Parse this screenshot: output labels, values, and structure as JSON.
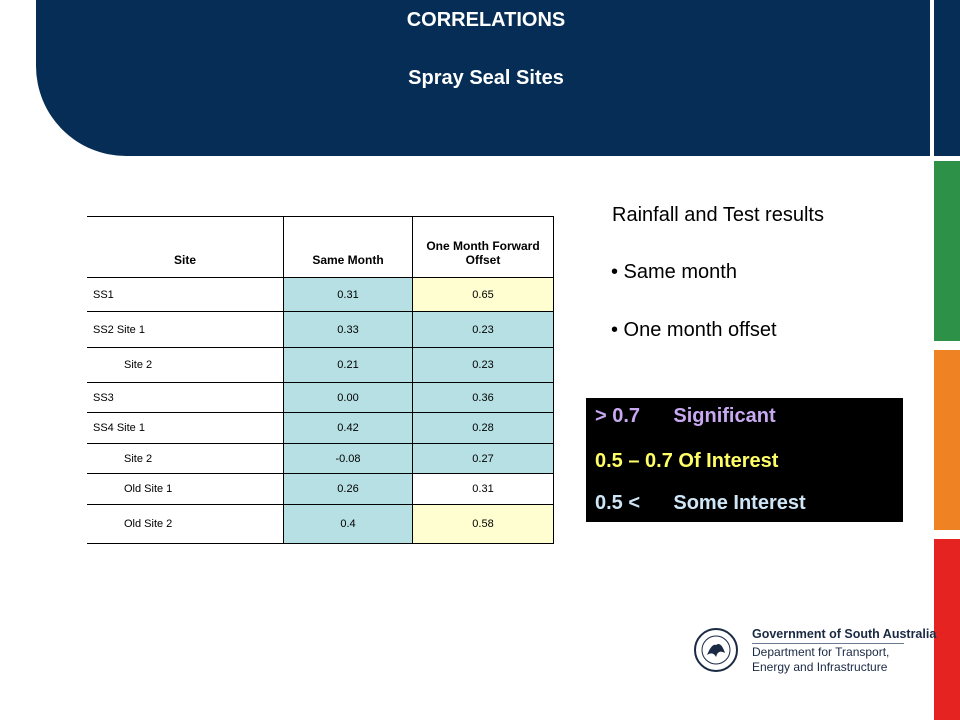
{
  "header": {
    "title": "CORRELATIONS",
    "subtitle": "Spray Seal Sites"
  },
  "table": {
    "columns": [
      "Site",
      "Same Month",
      "One Month Forward Offset"
    ],
    "rows": [
      {
        "site": "SS1",
        "same": "0.31",
        "offset": "0.65"
      },
      {
        "site": "SS2 Site 1",
        "same": "0.33",
        "offset": "0.23"
      },
      {
        "site": "Site 2",
        "same": "0.21",
        "offset": "0.23"
      },
      {
        "site": "SS3",
        "same": "0.00",
        "offset": "0.36"
      },
      {
        "site": "SS4 Site 1",
        "same": "0.42",
        "offset": "0.28"
      },
      {
        "site": "Site 2",
        "same": "-0.08",
        "offset": "0.27"
      },
      {
        "site": "Old Site 1",
        "same": "0.26",
        "offset": "0.31"
      },
      {
        "site": "Old Site 2",
        "same": "0.4",
        "offset": "0.58"
      }
    ]
  },
  "notes": {
    "heading": "Rainfall and Test results",
    "bullets": [
      "• Same month",
      "• One month offset"
    ]
  },
  "legend": {
    "rows": [
      "> 0.7      Significant",
      "0.5 – 0.7 Of Interest",
      "0.5 <      Some Interest"
    ]
  },
  "logo": {
    "line1": "Government of South Australia",
    "line2": "Department for Transport,",
    "line3": "Energy and Infrastructure"
  },
  "colors": {
    "navy": "#062d55",
    "green": "#2e9148",
    "orange": "#ef8222",
    "red": "#e52321",
    "cell_blue": "#b6e0e3",
    "cell_yellow": "#fefed0"
  }
}
